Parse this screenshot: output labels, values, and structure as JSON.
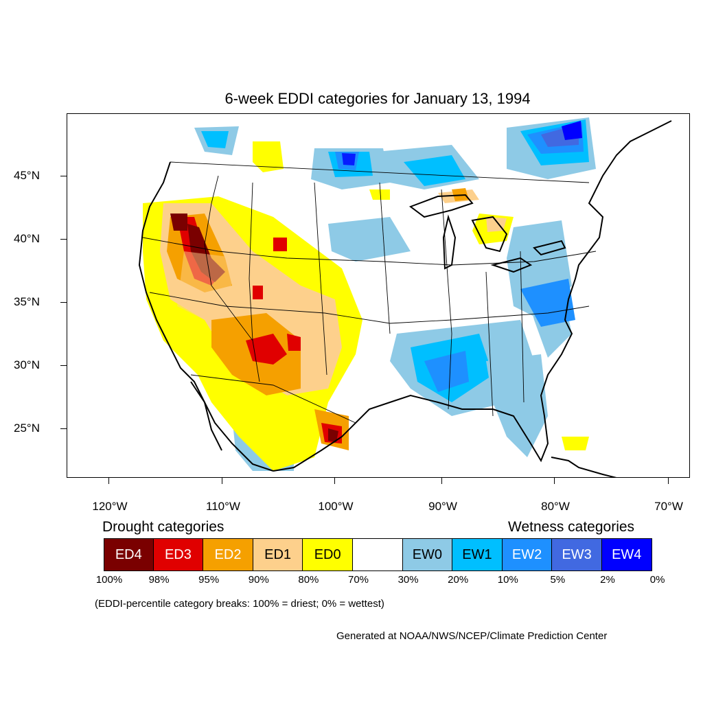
{
  "title": "6-week EDDI categories for January 13, 1994",
  "lat_labels": [
    "45°N",
    "40°N",
    "35°N",
    "30°N",
    "25°N"
  ],
  "lon_labels": [
    "120°W",
    "110°W",
    "100°W",
    "90°W",
    "80°W",
    "70°W"
  ],
  "legend": {
    "drought_heading": "Drought categories",
    "wetness_heading": "Wetness categories",
    "categories": [
      {
        "label": "ED4",
        "color": "#7a0000",
        "text_color": "#ffffff"
      },
      {
        "label": "ED3",
        "color": "#e00000",
        "text_color": "#ffffff"
      },
      {
        "label": "ED2",
        "color": "#f5a000",
        "text_color": "#ffffff"
      },
      {
        "label": "ED1",
        "color": "#fdd08c",
        "text_color": "#000000"
      },
      {
        "label": "ED0",
        "color": "#ffff00",
        "text_color": "#000000"
      },
      {
        "label": "",
        "color": "#ffffff",
        "text_color": "#000000"
      },
      {
        "label": "EW0",
        "color": "#8ecae6",
        "text_color": "#000000"
      },
      {
        "label": "EW1",
        "color": "#00bfff",
        "text_color": "#000000"
      },
      {
        "label": "EW2",
        "color": "#1e90ff",
        "text_color": "#ffffff"
      },
      {
        "label": "EW3",
        "color": "#4169e1",
        "text_color": "#ffffff"
      },
      {
        "label": "EW4",
        "color": "#0000ff",
        "text_color": "#ffffff"
      }
    ],
    "percent_breaks": [
      "100%",
      "98%",
      "95%",
      "90%",
      "80%",
      "70%",
      "30%",
      "20%",
      "10%",
      "5%",
      "2%",
      "0%"
    ]
  },
  "note": "(EDDI-percentile category breaks: 100% = driest; 0% = wettest)",
  "credit": "Generated at NOAA/NWS/NCEP/Climate Prediction Center"
}
